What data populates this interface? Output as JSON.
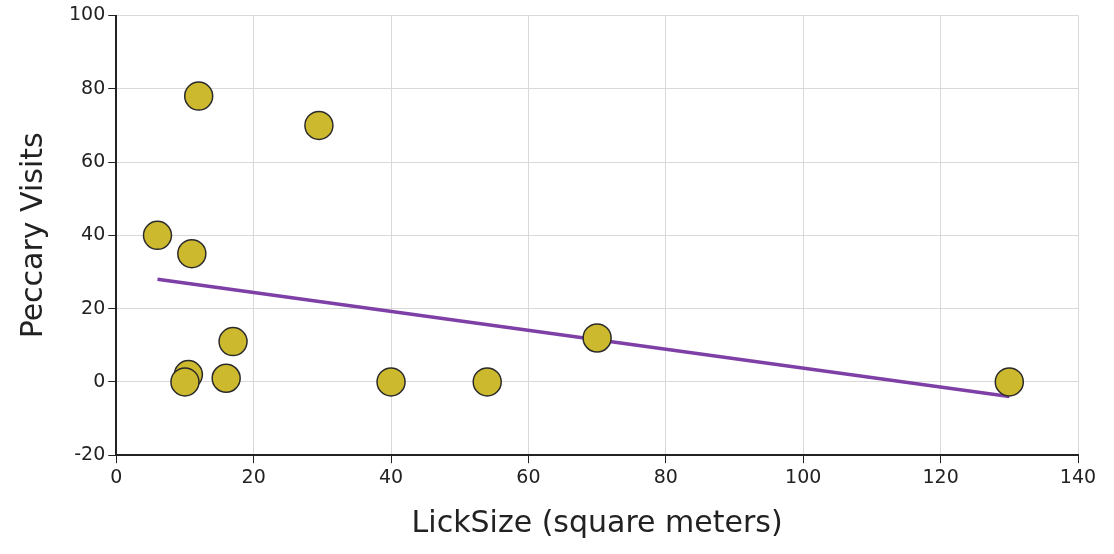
{
  "chart_data": {
    "type": "scatter",
    "x_label": "LickSize (square meters)",
    "y_label": "Peccary Visits",
    "series": [
      {
        "type": "scatter",
        "marker": "circle",
        "color": "#cdb92e",
        "x": [
          6,
          11,
          12,
          29.5,
          10.5,
          10,
          16,
          17,
          40,
          54,
          70,
          130
        ],
        "values": [
          40,
          35,
          78,
          70,
          2,
          0,
          1,
          11,
          0,
          0,
          12,
          0
        ]
      },
      {
        "type": "line",
        "line_style": "solid",
        "color": "#7e3fa6",
        "x": [
          6,
          130
        ],
        "values": [
          28,
          -4
        ]
      }
    ],
    "xlim": [
      0,
      140
    ],
    "xticks": [
      0,
      20,
      40,
      60,
      80,
      100,
      120,
      140
    ],
    "ylim": [
      -20,
      100
    ],
    "yticks": [
      -20,
      0,
      20,
      40,
      60,
      80,
      100
    ],
    "grid": true
  }
}
